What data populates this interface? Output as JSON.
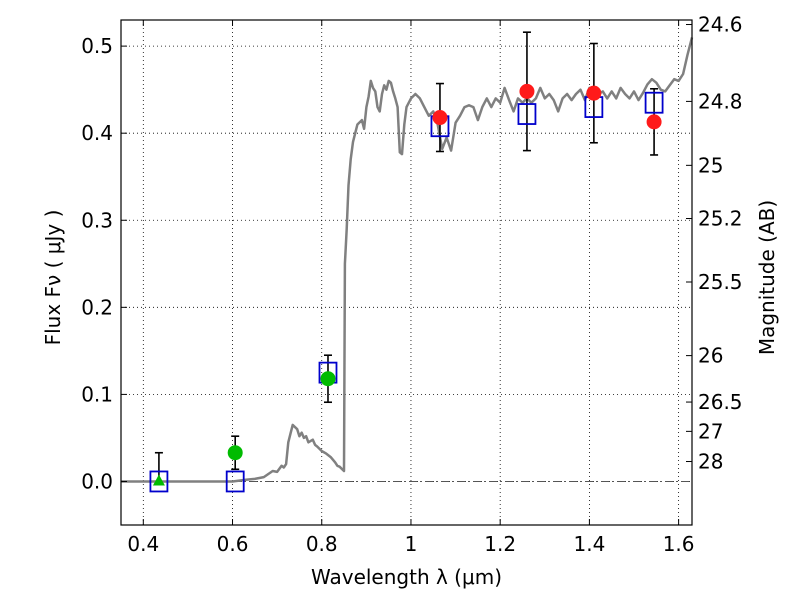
{
  "chart_data": {
    "type": "scatter",
    "xlabel": "Wavelength  λ (μm)",
    "ylabel": "Flux  Fν  ( μJy )",
    "y2label": "Magnitude (AB)",
    "xlim": [
      0.35,
      1.63
    ],
    "ylim": [
      -0.05,
      0.53
    ],
    "x_ticks": [
      0.4,
      0.6,
      0.8,
      1.0,
      1.2,
      1.4,
      1.6
    ],
    "x_tick_labels": [
      "0.4",
      "0.6",
      "0.8",
      "1",
      "1.2",
      "1.4",
      "1.6"
    ],
    "y_ticks": [
      0.0,
      0.1,
      0.2,
      0.3,
      0.4,
      0.5
    ],
    "y_tick_labels": [
      "0.0",
      "0.1",
      "0.2",
      "0.3",
      "0.4",
      "0.5"
    ],
    "y2_ticks": [
      {
        "label": "24.6",
        "mag": 24.6
      },
      {
        "label": "24.8",
        "mag": 24.8
      },
      {
        "label": "25",
        "mag": 25.0
      },
      {
        "label": "25.2",
        "mag": 25.2
      },
      {
        "label": "25.5",
        "mag": 25.5
      },
      {
        "label": "26",
        "mag": 26.0
      },
      {
        "label": "26.5",
        "mag": 26.5
      },
      {
        "label": "27",
        "mag": 27.0
      },
      {
        "label": "28",
        "mag": 28.0
      }
    ],
    "grid": true,
    "colors": {
      "model": "#808080",
      "green": "#00bb00",
      "red": "#ff1a1a",
      "box": "#0000cc",
      "zero_line": "#555555"
    },
    "series": [
      {
        "kind": "model_spectrum",
        "style": "line",
        "points": [
          [
            0.35,
            0.0
          ],
          [
            0.6,
            0.0
          ],
          [
            0.63,
            0.002
          ],
          [
            0.65,
            0.003
          ],
          [
            0.67,
            0.005
          ],
          [
            0.69,
            0.012
          ],
          [
            0.7,
            0.011
          ],
          [
            0.71,
            0.018
          ],
          [
            0.715,
            0.016
          ],
          [
            0.72,
            0.02
          ],
          [
            0.725,
            0.045
          ],
          [
            0.73,
            0.055
          ],
          [
            0.735,
            0.065
          ],
          [
            0.745,
            0.06
          ],
          [
            0.75,
            0.052
          ],
          [
            0.755,
            0.056
          ],
          [
            0.76,
            0.05
          ],
          [
            0.765,
            0.052
          ],
          [
            0.77,
            0.045
          ],
          [
            0.78,
            0.048
          ],
          [
            0.785,
            0.042
          ],
          [
            0.79,
            0.04
          ],
          [
            0.8,
            0.035
          ],
          [
            0.81,
            0.032
          ],
          [
            0.82,
            0.028
          ],
          [
            0.825,
            0.025
          ],
          [
            0.83,
            0.022
          ],
          [
            0.835,
            0.018
          ],
          [
            0.84,
            0.017
          ],
          [
            0.85,
            0.012
          ],
          [
            0.852,
            0.25
          ],
          [
            0.856,
            0.29
          ],
          [
            0.86,
            0.34
          ],
          [
            0.865,
            0.37
          ],
          [
            0.87,
            0.39
          ],
          [
            0.88,
            0.41
          ],
          [
            0.89,
            0.415
          ],
          [
            0.895,
            0.405
          ],
          [
            0.9,
            0.43
          ],
          [
            0.905,
            0.442
          ],
          [
            0.91,
            0.46
          ],
          [
            0.915,
            0.452
          ],
          [
            0.92,
            0.448
          ],
          [
            0.925,
            0.43
          ],
          [
            0.93,
            0.425
          ],
          [
            0.935,
            0.445
          ],
          [
            0.94,
            0.455
          ],
          [
            0.945,
            0.45
          ],
          [
            0.95,
            0.46
          ],
          [
            0.955,
            0.458
          ],
          [
            0.96,
            0.448
          ],
          [
            0.965,
            0.44
          ],
          [
            0.97,
            0.43
          ],
          [
            0.975,
            0.378
          ],
          [
            0.98,
            0.376
          ],
          [
            0.985,
            0.41
          ],
          [
            0.99,
            0.43
          ],
          [
            1.0,
            0.44
          ],
          [
            1.01,
            0.445
          ],
          [
            1.02,
            0.44
          ],
          [
            1.03,
            0.43
          ],
          [
            1.04,
            0.42
          ],
          [
            1.05,
            0.425
          ],
          [
            1.06,
            0.41
          ],
          [
            1.07,
            0.382
          ],
          [
            1.08,
            0.395
          ],
          [
            1.09,
            0.38
          ],
          [
            1.1,
            0.412
          ],
          [
            1.11,
            0.42
          ],
          [
            1.12,
            0.43
          ],
          [
            1.13,
            0.432
          ],
          [
            1.14,
            0.43
          ],
          [
            1.15,
            0.415
          ],
          [
            1.16,
            0.43
          ],
          [
            1.17,
            0.44
          ],
          [
            1.18,
            0.43
          ],
          [
            1.19,
            0.44
          ],
          [
            1.2,
            0.435
          ],
          [
            1.21,
            0.452
          ],
          [
            1.22,
            0.438
          ],
          [
            1.23,
            0.425
          ],
          [
            1.24,
            0.44
          ],
          [
            1.25,
            0.435
          ],
          [
            1.26,
            0.44
          ],
          [
            1.27,
            0.435
          ],
          [
            1.28,
            0.44
          ],
          [
            1.29,
            0.452
          ],
          [
            1.3,
            0.44
          ],
          [
            1.31,
            0.445
          ],
          [
            1.32,
            0.438
          ],
          [
            1.33,
            0.425
          ],
          [
            1.34,
            0.44
          ],
          [
            1.35,
            0.445
          ],
          [
            1.36,
            0.438
          ],
          [
            1.37,
            0.445
          ],
          [
            1.38,
            0.45
          ],
          [
            1.39,
            0.438
          ],
          [
            1.4,
            0.452
          ],
          [
            1.41,
            0.44
          ],
          [
            1.42,
            0.445
          ],
          [
            1.43,
            0.448
          ],
          [
            1.44,
            0.44
          ],
          [
            1.45,
            0.448
          ],
          [
            1.46,
            0.44
          ],
          [
            1.47,
            0.452
          ],
          [
            1.48,
            0.445
          ],
          [
            1.49,
            0.44
          ],
          [
            1.5,
            0.448
          ],
          [
            1.51,
            0.438
          ],
          [
            1.52,
            0.446
          ],
          [
            1.53,
            0.456
          ],
          [
            1.54,
            0.462
          ],
          [
            1.55,
            0.458
          ],
          [
            1.56,
            0.45
          ],
          [
            1.57,
            0.448
          ],
          [
            1.58,
            0.455
          ],
          [
            1.59,
            0.462
          ],
          [
            1.6,
            0.46
          ],
          [
            1.61,
            0.468
          ],
          [
            1.62,
            0.49
          ],
          [
            1.63,
            0.51
          ]
        ]
      },
      {
        "kind": "model_band_flux",
        "style": "open_square",
        "points": [
          [
            0.435,
            0.0
          ],
          [
            0.606,
            0.0
          ],
          [
            0.814,
            0.125
          ],
          [
            1.065,
            0.408
          ],
          [
            1.26,
            0.422
          ],
          [
            1.41,
            0.43
          ],
          [
            1.545,
            0.435
          ]
        ]
      },
      {
        "kind": "observed_green",
        "style": "filled_circle",
        "points": [
          {
            "x": 0.606,
            "y": 0.033,
            "err": 0.019
          },
          {
            "x": 0.814,
            "y": 0.118,
            "err": 0.027
          }
        ]
      },
      {
        "kind": "observed_red",
        "style": "filled_circle",
        "points": [
          {
            "x": 1.065,
            "y": 0.418,
            "err": 0.039
          },
          {
            "x": 1.26,
            "y": 0.448,
            "err": 0.068
          },
          {
            "x": 1.41,
            "y": 0.446,
            "err": 0.057
          },
          {
            "x": 1.545,
            "y": 0.413,
            "err": 0.038
          }
        ]
      },
      {
        "kind": "upper_limit",
        "style": "triangle",
        "points": [
          {
            "x": 0.435,
            "y": 0.0,
            "err": 0.033
          }
        ]
      }
    ]
  }
}
